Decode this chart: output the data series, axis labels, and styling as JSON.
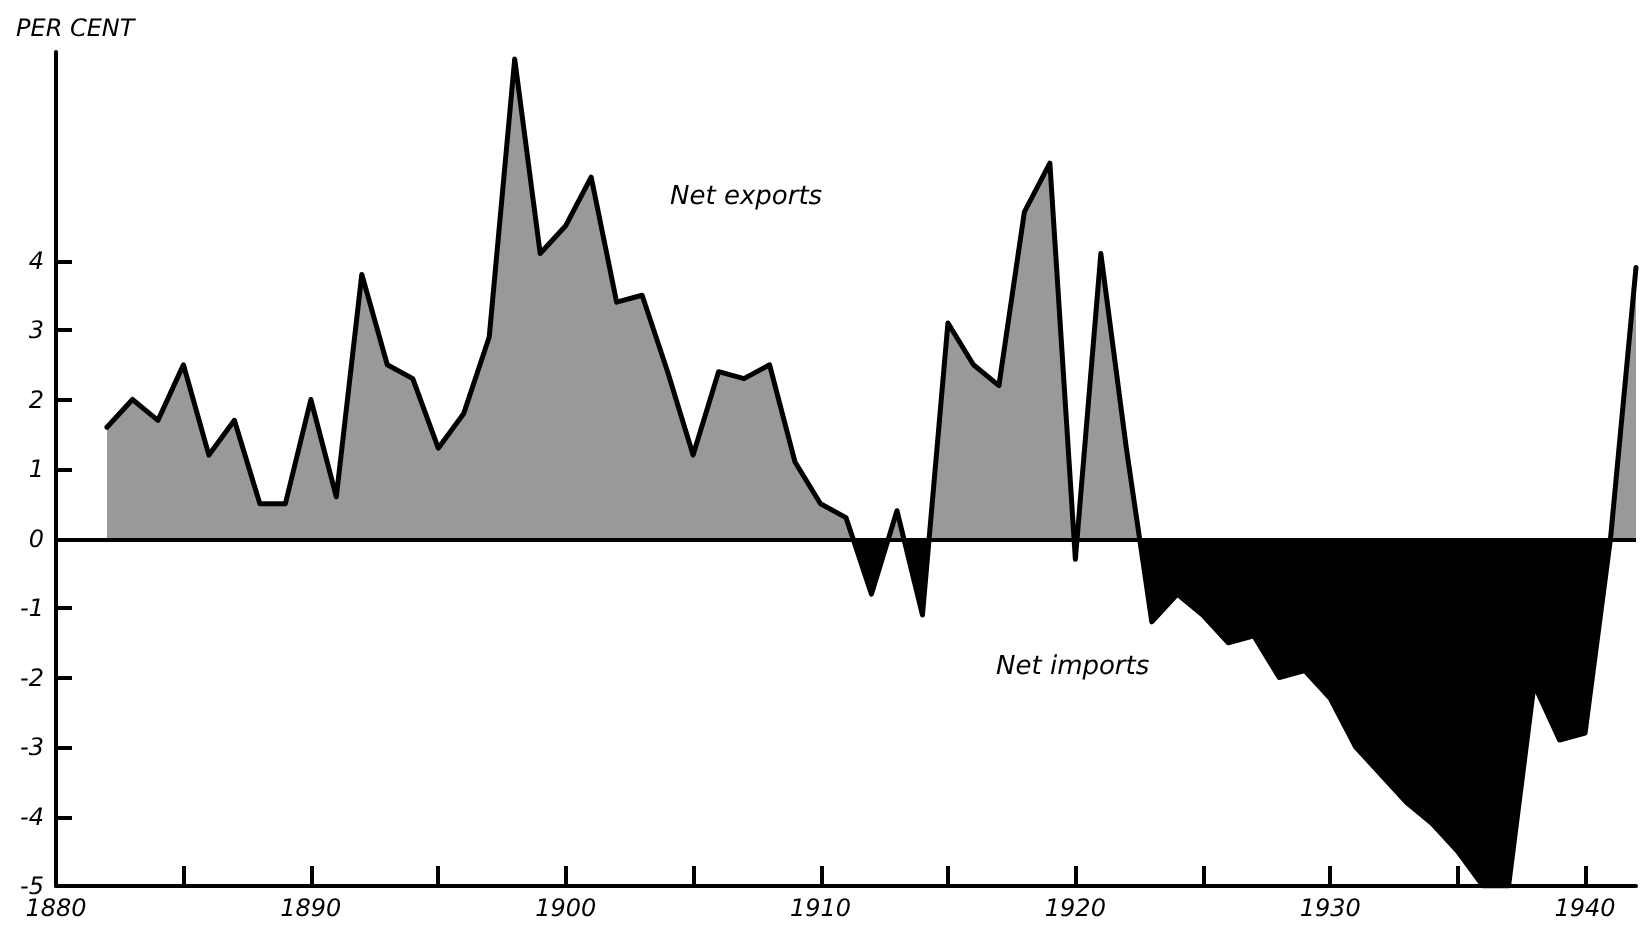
{
  "chart_data": {
    "type": "area",
    "ylabel": "PER CENT",
    "x": [
      1882,
      1883,
      1884,
      1885,
      1886,
      1887,
      1888,
      1889,
      1890,
      1891,
      1892,
      1893,
      1894,
      1895,
      1896,
      1897,
      1898,
      1899,
      1900,
      1901,
      1902,
      1903,
      1904,
      1905,
      1906,
      1907,
      1908,
      1909,
      1910,
      1911,
      1912,
      1913,
      1914,
      1915,
      1916,
      1917,
      1918,
      1919,
      1920,
      1921,
      1922,
      1923,
      1924,
      1925,
      1926,
      1927,
      1928,
      1929,
      1930,
      1931,
      1932,
      1933,
      1934,
      1935,
      1936,
      1937,
      1938,
      1939,
      1940,
      1941,
      1942
    ],
    "series": [
      {
        "color": "#000000",
        "values": [
          1.6,
          2.0,
          1.7,
          2.5,
          1.2,
          1.7,
          0.5,
          0.5,
          2.0,
          0.6,
          3.8,
          2.5,
          2.3,
          1.3,
          1.8,
          2.9,
          6.9,
          4.1,
          4.5,
          5.2,
          3.4,
          3.5,
          2.4,
          1.2,
          2.4,
          2.3,
          2.5,
          1.1,
          0.5,
          0.3,
          -0.8,
          0.4,
          -1.1,
          3.1,
          2.5,
          2.2,
          4.7,
          5.4,
          -0.3,
          4.1,
          1.3,
          -1.2,
          -0.8,
          -1.1,
          -1.5,
          -1.4,
          -2.0,
          -1.9,
          -2.3,
          -3.0,
          -3.4,
          -3.8,
          -4.1,
          -4.5,
          -5.0,
          -5.0,
          -2.1,
          -2.9,
          -2.8,
          0.0,
          3.9
        ]
      }
    ],
    "xlim": [
      1880,
      1942
    ],
    "xticks": [
      1880,
      {
        "value": 1885,
        "label": null
      },
      1890,
      {
        "value": 1895,
        "label": null
      },
      1900,
      {
        "value": 1905,
        "label": null
      },
      1910,
      {
        "value": 1915,
        "label": null
      },
      1920,
      {
        "value": 1925,
        "label": null
      },
      1930,
      {
        "value": 1935,
        "label": null
      },
      1940
    ],
    "ylim": [
      -5,
      7
    ],
    "yticks": [
      -5,
      -4,
      -3,
      -2,
      -1,
      0,
      1,
      2,
      3,
      4
    ],
    "ref_lines": [
      {
        "axis": "y",
        "value": 0
      }
    ],
    "annotations": [
      "Net exports",
      "Net imports"
    ],
    "grid": false,
    "marker": "none",
    "line_style": "solid"
  }
}
